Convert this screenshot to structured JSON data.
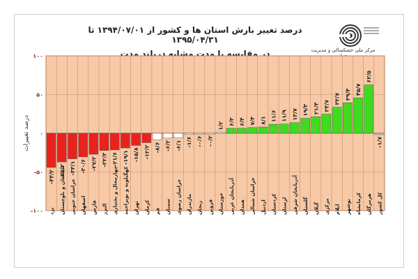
{
  "header": {
    "title_line1": "درصد تغییر بارش استان ها و کشور از ۱۳۹۴/۰۷/۰۱ تا ۱۳۹۵/۰۴/۳۱",
    "title_line2": "در مقایسه با مدت مشابه دربلند مدت",
    "org_name": "مرکز ملی خشکسالی و مدیریت بحران"
  },
  "colors": {
    "plot_bg": "#f7c9a6",
    "grid": "#c88d6a",
    "negative": "#e8231e",
    "near_zero": "#ffffff",
    "positive": "#3fdc1e",
    "country": "#cfcfcf"
  },
  "chart_data": {
    "type": "bar",
    "title": "درصد تغییر بارش استان ها و کشور از ۱۳۹۴/۰۷/۰۱ تا ۱۳۹۵/۰۴/۳۱",
    "subtitle": "در مقایسه با مدت مشابه دربلند مدت",
    "ylabel": "درصد تغییرات",
    "ylim": [
      -100,
      100
    ],
    "yticks": [
      "۱۰۰",
      "۵۰",
      "۰",
      "-۵۰",
      "-۱۰۰"
    ],
    "grid": true,
    "categories": [
      "یزد",
      "سیستان و بلوچستان",
      "خراسان جنوبی",
      "اصفهان",
      "فارس",
      "البرز",
      "چهارمحال و بختیاری",
      "کهگیلویه و بویراحمد",
      "تهران",
      "کرمان",
      "قم",
      "سمنان",
      "خراسان رضوی",
      "مازندران",
      "زنجان",
      "قزوین",
      "خوزستان",
      "آذربایجان غربی",
      "همدان",
      "خراسان شمالی",
      "اردبیل",
      "کردستان",
      "لرستان",
      "آذربایجان شرقی",
      "گلستان",
      "گیلان",
      "مرکزی",
      "ایلام",
      "بوشهر",
      "کرمانشاه",
      "هرمزگان",
      "کل کشور"
    ],
    "values": [
      -44.2,
      -37.2,
      -33.1,
      -30.6,
      -27.2,
      -22.3,
      -21.6,
      -19.1,
      -15.8,
      -12.2,
      -8.6,
      -6.2,
      -6.1,
      -1.6,
      -0.6,
      -0.2,
      1.2,
      6.3,
      6.4,
      7.4,
      8.1,
      11.6,
      11.9,
      13.7,
      19.3,
      21.4,
      24.7,
      33.7,
      39.4,
      45.7,
      62.5,
      -1.7
    ],
    "value_labels": [
      "-۴۴/۲",
      "-۳۷/۲",
      "-۳۳/۱",
      "-۳۰/۶",
      "-۲۷/۲",
      "-۲۲/۳",
      "-۲۱/۶",
      "-۱۹/۱",
      "-۱۵/۸",
      "-۱۲/۲",
      "-۸/۶",
      "-۶/۲",
      "-۶/۱",
      "-۱/۶",
      "-۰/۶",
      "-۰/۲",
      "۱/۲",
      "۶/۳",
      "۶/۴",
      "۷/۴",
      "۸/۱",
      "۱۱/۶",
      "۱۱/۹",
      "۱۳/۷",
      "۱۹/۳",
      "۲۱/۴",
      "۲۴/۷",
      "۳۳/۷",
      "۳۹/۴",
      "۴۵/۷",
      "۶۲/۵",
      "-۱/۷"
    ]
  }
}
